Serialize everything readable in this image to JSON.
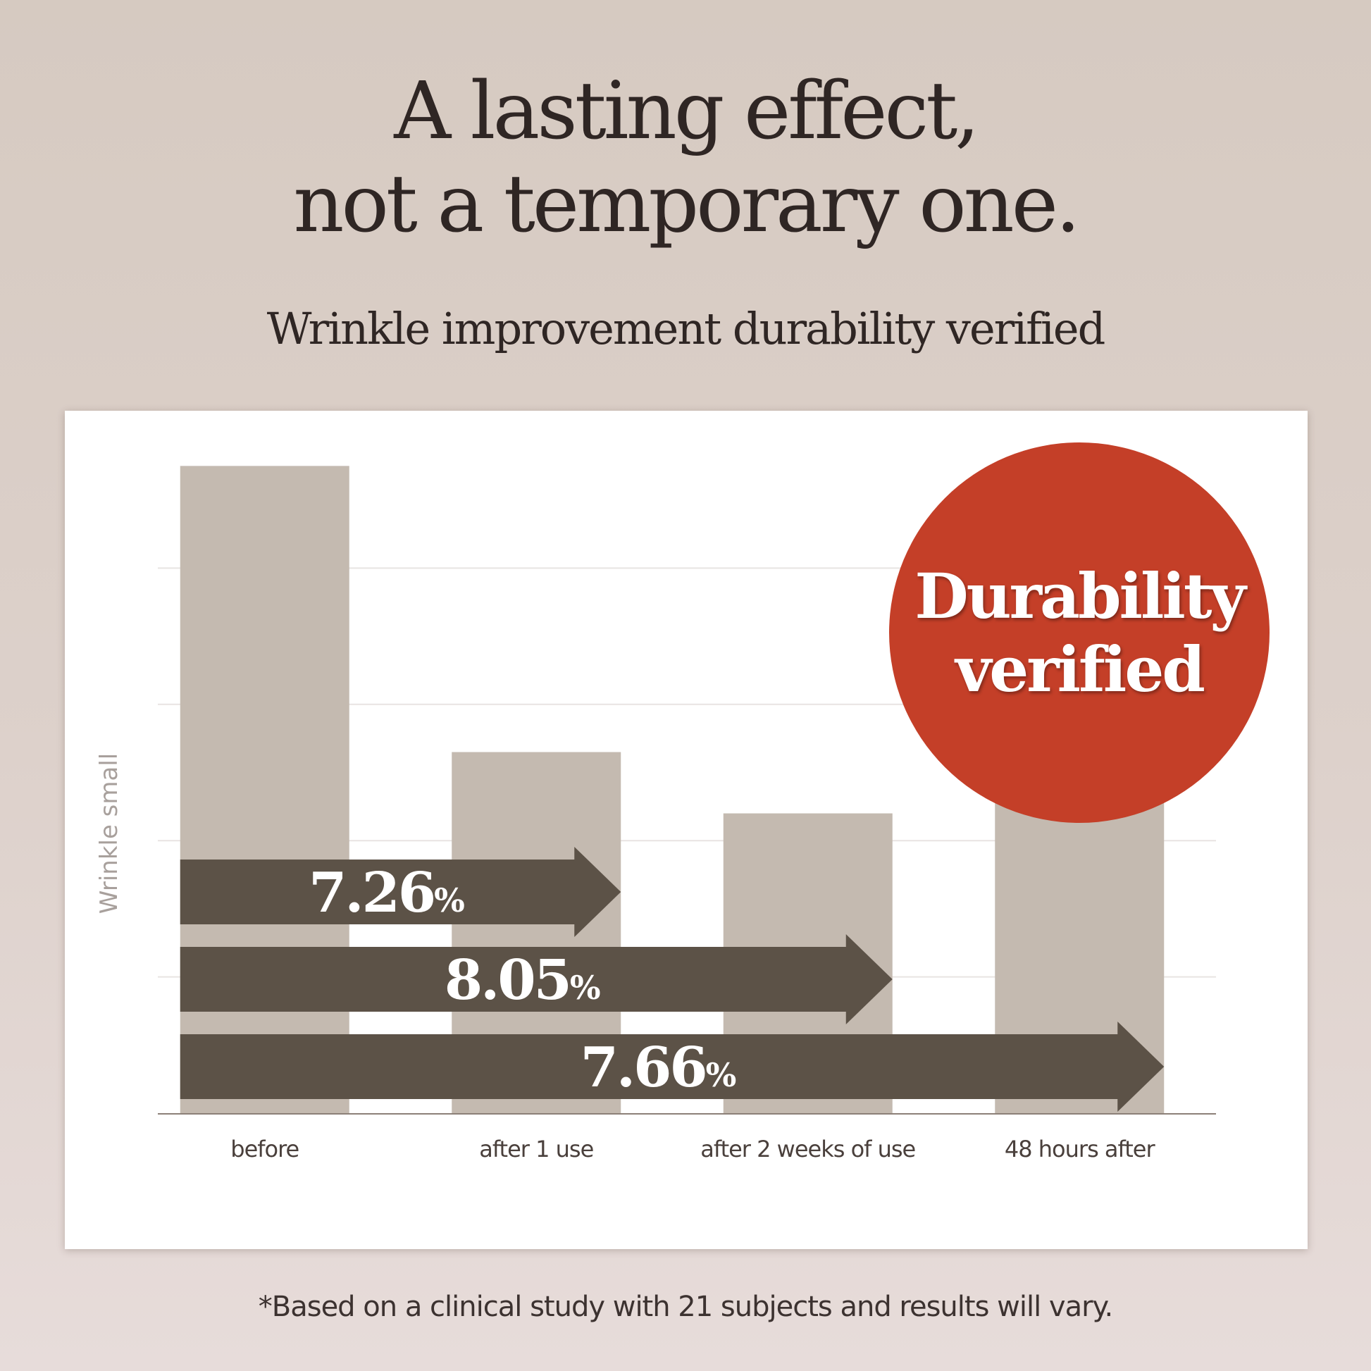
{
  "headline": {
    "line1": "A lasting effect,",
    "line2": "not a temporary one."
  },
  "subtitle": "Wrinkle improvement durability verified",
  "badge": {
    "line1": "Durability",
    "line2": "verified"
  },
  "footnote": "*Based on a clinical study with 21 subjects and results will vary.",
  "colors": {
    "bar": "#c4bab0",
    "arrow": "#5c5247",
    "badge": "#c43f28",
    "gridline": "#e8e4e2"
  },
  "chart_data": {
    "type": "bar",
    "title": "",
    "xlabel": "",
    "ylabel": "Wrinkle small",
    "categories": [
      "before",
      "after 1 use",
      "after 2 weeks of use",
      "48 hours after"
    ],
    "values": [
      95,
      53,
      44,
      48
    ],
    "ylim": [
      0,
      100
    ],
    "grid": true,
    "arrows": [
      {
        "label": "7.26",
        "unit": "%",
        "from": "before",
        "to": "after 1 use"
      },
      {
        "label": "8.05",
        "unit": "%",
        "from": "before",
        "to": "after 2 weeks of use"
      },
      {
        "label": "7.66",
        "unit": "%",
        "from": "before",
        "to": "48 hours after"
      }
    ]
  }
}
